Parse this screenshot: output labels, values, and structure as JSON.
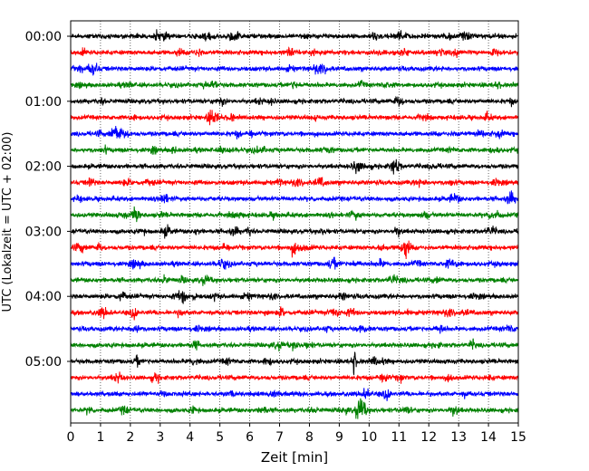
{
  "chart_data": {
    "type": "line",
    "chart_kind": "helicorder",
    "xlabel": "Zeit  [min]",
    "ylabel": "UTC (Lokalzeit = UTC + 02:00)",
    "xlim": [
      0,
      15
    ],
    "x_ticks": [
      "0",
      "1",
      "2",
      "3",
      "4",
      "5",
      "6",
      "7",
      "8",
      "9",
      "10",
      "11",
      "12",
      "13",
      "14",
      "15"
    ],
    "y_ticks": [
      "00:00",
      "01:00",
      "02:00",
      "03:00",
      "04:00",
      "05:00"
    ],
    "traces_per_hour": 4,
    "trace_count": 24,
    "trace_color_cycle": [
      "#000000",
      "#ff0000",
      "#0000ff",
      "#008000"
    ],
    "grid": "vertical dotted lines at each minute",
    "notable_events": [
      {
        "trace_index": 20,
        "start_time": "05:00",
        "minute": 9.5,
        "description": "spike"
      },
      {
        "trace_index": 23,
        "start_time": "05:45",
        "minute": 9.7,
        "description": "burst"
      },
      {
        "trace_index": 13,
        "start_time": "03:15",
        "minute": 11.2,
        "description": "burst"
      }
    ]
  }
}
